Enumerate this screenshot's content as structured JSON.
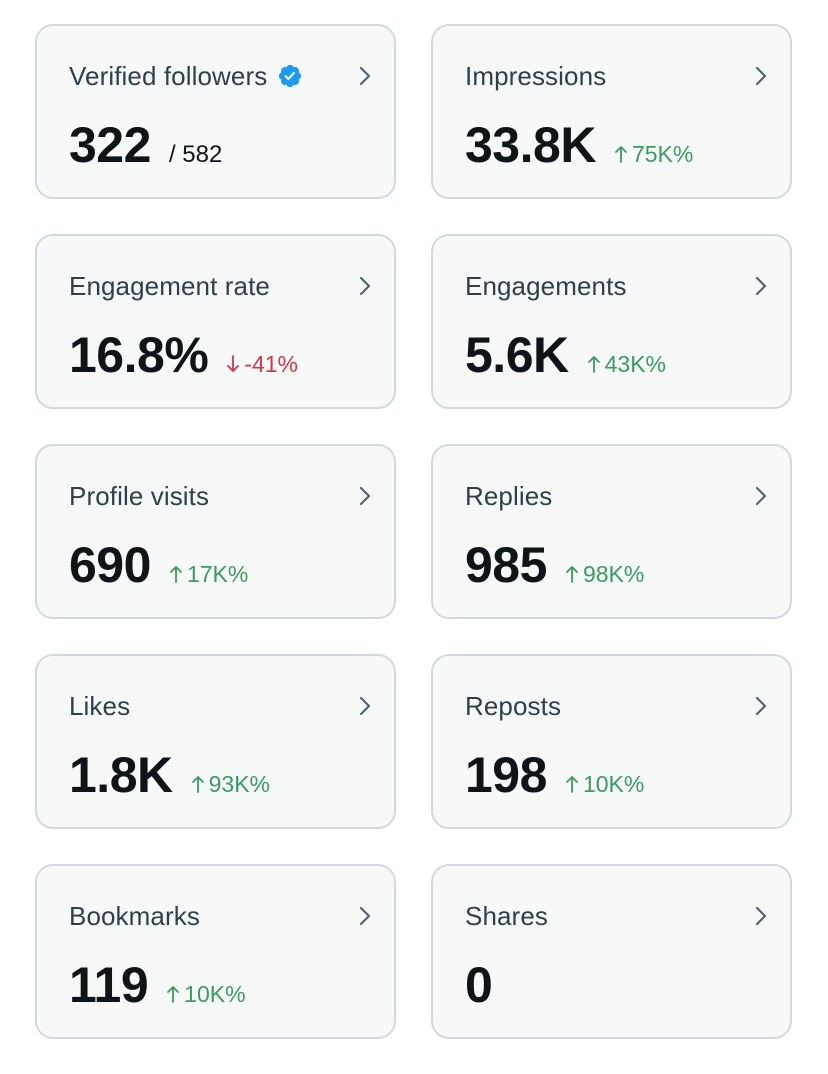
{
  "colors": {
    "card_bg": "#f7f9f9",
    "card_border": "#cfd9de",
    "label": "#2f3f4e",
    "value": "#0f1419",
    "up": "#3a9b61",
    "down": "#d0364a",
    "verified": "#1d9bf0"
  },
  "cards": [
    {
      "label": "Verified followers",
      "value": "322",
      "total": "/ 582",
      "verified": true,
      "icon": "chevron-right-icon"
    },
    {
      "label": "Impressions",
      "value": "33.8K",
      "change": "75K%",
      "direction": "up",
      "icon": "chevron-right-icon"
    },
    {
      "label": "Engagement rate",
      "value": "16.8%",
      "change": "-41%",
      "direction": "down",
      "icon": "chevron-right-icon"
    },
    {
      "label": "Engagements",
      "value": "5.6K",
      "change": "43K%",
      "direction": "up",
      "icon": "chevron-right-icon"
    },
    {
      "label": "Profile visits",
      "value": "690",
      "change": "17K%",
      "direction": "up",
      "icon": "chevron-right-icon"
    },
    {
      "label": "Replies",
      "value": "985",
      "change": "98K%",
      "direction": "up",
      "icon": "chevron-right-icon"
    },
    {
      "label": "Likes",
      "value": "1.8K",
      "change": "93K%",
      "direction": "up",
      "icon": "chevron-right-icon"
    },
    {
      "label": "Reposts",
      "value": "198",
      "change": "10K%",
      "direction": "up",
      "icon": "chevron-right-icon"
    },
    {
      "label": "Bookmarks",
      "value": "119",
      "change": "10K%",
      "direction": "up",
      "icon": "chevron-right-icon"
    },
    {
      "label": "Shares",
      "value": "0",
      "icon": "chevron-right-icon"
    }
  ]
}
